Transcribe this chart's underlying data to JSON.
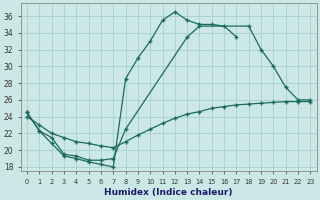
{
  "bg_color": "#cce8e6",
  "grid_color": "#a8d0ce",
  "line_color": "#1a6b5a",
  "xlabel": "Humidex (Indice chaleur)",
  "curve1_x": [
    0,
    1,
    2,
    3,
    4,
    5,
    6,
    7,
    8,
    9,
    10,
    11,
    12,
    13,
    14,
    15,
    16,
    17
  ],
  "curve1_y": [
    24.5,
    22.3,
    20.8,
    19.3,
    19.0,
    18.6,
    18.3,
    18.0,
    28.5,
    31.0,
    33.0,
    35.5,
    36.5,
    35.5,
    35.0,
    35.0,
    34.8,
    33.5
  ],
  "curve2_x": [
    0,
    1,
    2,
    3,
    4,
    5,
    6,
    7,
    8,
    9,
    10,
    11,
    12,
    13,
    14,
    15,
    16,
    17,
    18,
    19,
    20,
    21,
    22,
    23
  ],
  "curve2_y": [
    24.0,
    23.0,
    22.0,
    21.5,
    21.0,
    20.8,
    20.5,
    20.3,
    21.0,
    21.8,
    22.5,
    23.2,
    23.8,
    24.3,
    24.6,
    25.0,
    25.2,
    25.4,
    25.5,
    25.6,
    25.7,
    25.8,
    25.8,
    25.8
  ],
  "curve3_x": [
    0,
    1,
    2,
    3,
    4,
    5,
    6,
    7,
    8,
    13,
    14,
    18,
    19,
    20,
    21,
    22,
    23
  ],
  "curve3_y": [
    24.5,
    22.3,
    21.5,
    19.5,
    19.3,
    18.8,
    18.8,
    19.0,
    22.5,
    33.5,
    34.8,
    34.8,
    32.0,
    30.0,
    27.5,
    26.0,
    26.0
  ],
  "xlim": [
    -0.5,
    23.5
  ],
  "ylim": [
    17.5,
    37.5
  ],
  "xtick_labels": [
    "0",
    "1",
    "2",
    "3",
    "4",
    "5",
    "6",
    "7",
    "8",
    "9",
    "10",
    "11",
    "12",
    "13",
    "14",
    "15",
    "16",
    "17",
    "18",
    "19",
    "20",
    "21",
    "22",
    "23"
  ],
  "ytick_vals": [
    18,
    20,
    22,
    24,
    26,
    28,
    30,
    32,
    34,
    36
  ]
}
